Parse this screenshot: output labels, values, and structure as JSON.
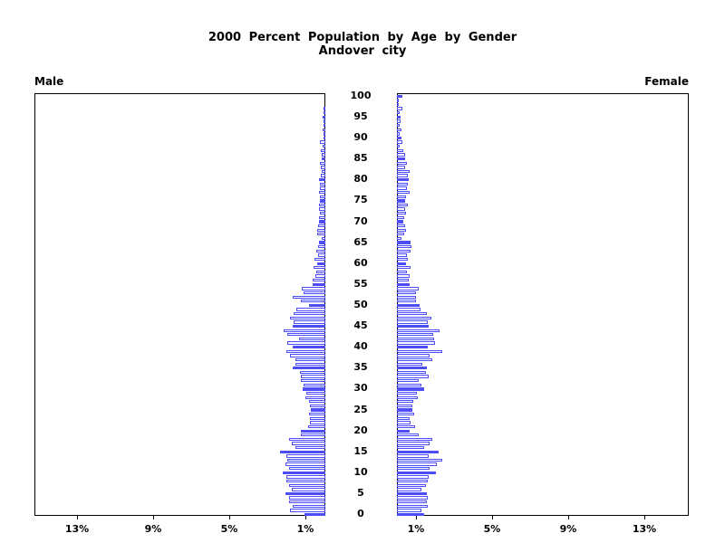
{
  "title": {
    "line1": "2000 Percent Population by Age by Gender",
    "line2": "Andover city"
  },
  "panels": {
    "male_label": "Male",
    "female_label": "Female"
  },
  "chart_data": {
    "type": "bar",
    "subtype": "population-pyramid",
    "title": "2000 Percent Population by Age by Gender",
    "subtitle": "Andover city",
    "unit": "percent of total population",
    "orientation": "horizontal, male bars extend left, female bars extend right",
    "age_min": 0,
    "age_max": 100,
    "age_tick_step": 5,
    "age_tick_labels": [
      "0",
      "5",
      "10",
      "15",
      "20",
      "25",
      "30",
      "35",
      "40",
      "45",
      "50",
      "55",
      "60",
      "65",
      "70",
      "75",
      "80",
      "85",
      "90",
      "95",
      "100"
    ],
    "x_tick_values": [
      1,
      5,
      9,
      13
    ],
    "x_tick_labels": [
      "1%",
      "5%",
      "9%",
      "13%"
    ],
    "xlim": [
      0,
      15.2
    ],
    "grid": false,
    "legend": "none",
    "bar_fill_rule": "ages divisible by 5 are solid blue; all other ages are white with blue outline",
    "colors": {
      "bar_blue": "#4d4df5",
      "axis": "#000000",
      "background": "#ffffff"
    },
    "series": [
      {
        "name": "Male",
        "side": "left",
        "ages": "0-100 by single year, index = age",
        "values": [
          1.1,
          1.85,
          1.7,
          1.9,
          1.9,
          2.1,
          1.75,
          1.9,
          2.05,
          2.05,
          2.25,
          1.9,
          2.1,
          2.0,
          2.05,
          2.36,
          1.55,
          1.75,
          1.9,
          1.3,
          1.3,
          0.9,
          0.83,
          0.8,
          0.85,
          0.75,
          0.8,
          0.85,
          1.05,
          1.0,
          1.2,
          1.15,
          1.3,
          1.3,
          1.35,
          1.7,
          1.55,
          1.55,
          1.85,
          2.05,
          1.7,
          2.0,
          1.4,
          2.0,
          2.2,
          1.7,
          1.69,
          1.87,
          1.66,
          1.54,
          0.85,
          1.27,
          1.7,
          1.12,
          1.24,
          0.65,
          0.65,
          0.53,
          0.47,
          0.6,
          0.43,
          0.58,
          0.36,
          0.46,
          0.4,
          0.33,
          0.2,
          0.45,
          0.43,
          0.4,
          0.35,
          0.35,
          0.28,
          0.32,
          0.35,
          0.3,
          0.3,
          0.35,
          0.28,
          0.3,
          0.35,
          0.25,
          0.2,
          0.25,
          0.3,
          0.18,
          0.2,
          0.22,
          0.12,
          0.28,
          0.1,
          0.05,
          0.12,
          0.1,
          0.05,
          0.12,
          0.02,
          0.02,
          0.0,
          0.0,
          0.0
        ]
      },
      {
        "name": "Female",
        "side": "right",
        "ages": "0-100 by single year, index = age",
        "values": [
          1.45,
          1.27,
          1.6,
          1.55,
          1.6,
          1.57,
          1.3,
          1.5,
          1.6,
          1.65,
          2.05,
          1.7,
          2.1,
          2.36,
          1.65,
          2.2,
          1.45,
          1.7,
          1.87,
          1.13,
          0.68,
          0.95,
          0.71,
          0.65,
          0.9,
          0.83,
          0.83,
          0.86,
          1.1,
          1.05,
          1.42,
          1.27,
          1.13,
          1.69,
          1.54,
          1.57,
          1.35,
          1.87,
          1.72,
          2.37,
          1.6,
          2.0,
          1.97,
          1.9,
          2.24,
          1.69,
          1.64,
          1.79,
          1.57,
          1.24,
          1.2,
          1.0,
          0.98,
          1.0,
          1.13,
          0.65,
          0.62,
          0.68,
          0.53,
          0.71,
          0.46,
          0.59,
          0.5,
          0.71,
          0.77,
          0.71,
          0.24,
          0.39,
          0.49,
          0.45,
          0.35,
          0.4,
          0.48,
          0.42,
          0.55,
          0.45,
          0.48,
          0.65,
          0.5,
          0.55,
          0.6,
          0.55,
          0.65,
          0.45,
          0.5,
          0.45,
          0.42,
          0.35,
          0.15,
          0.3,
          0.22,
          0.12,
          0.25,
          0.12,
          0.2,
          0.18,
          0.12,
          0.28,
          0.1,
          0.05,
          0.27
        ]
      }
    ]
  }
}
